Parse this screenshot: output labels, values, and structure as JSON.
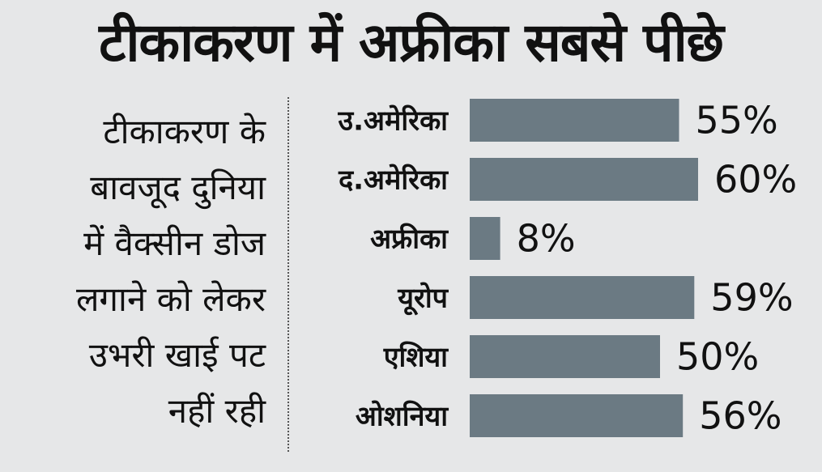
{
  "title": "टीकाकरण में अफ्रीका सबसे पीछे",
  "description_lines": [
    "टीकाकरण के",
    "बावजूद दुनिया",
    "में वैक्सीन डोज",
    "लगाने को लेकर",
    "उभरी खाई पट",
    "नहीं रही"
  ],
  "colors": {
    "bar": "#6b7a83",
    "background": "#e6e7e8"
  },
  "chart_data": {
    "type": "bar",
    "orientation": "horizontal",
    "title": "टीकाकरण में अफ्रीका सबसे पीछे",
    "categories": [
      "उ.अमेरिका",
      "द.अमेरिका",
      "अफ्रीका",
      "यूरोप",
      "एशिया",
      "ओशनिया"
    ],
    "values": [
      55,
      60,
      8,
      59,
      50,
      56
    ],
    "value_labels": [
      "55%",
      "60%",
      "8%",
      "59%",
      "50%",
      "56%"
    ],
    "unit": "%",
    "xlim": [
      0,
      60
    ],
    "grid": false,
    "legend": "none"
  }
}
